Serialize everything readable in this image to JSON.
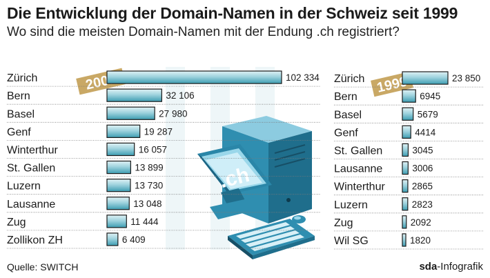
{
  "header": {
    "title": "Die Entwicklung der Domain-Namen in der Schweiz seit 1999",
    "subtitle": "Wo sind die meisten Domain-Namen mit der Endung .ch registriert?"
  },
  "footer": {
    "source": "Quelle: SWITCH",
    "credit_brand": "sda",
    "credit_rest": "-Infografik"
  },
  "illustration": {
    "screen_text": ".ch"
  },
  "colors": {
    "bar_light": "#cde9ee",
    "bar_dark": "#3d9db2",
    "badge": "#c9a865",
    "stripe": "#eef6f8",
    "computer": "#2f8eb0"
  },
  "chart_data": [
    {
      "type": "bar",
      "orientation": "horizontal",
      "badge": "2007",
      "categories": [
        "Zürich",
        "Bern",
        "Basel",
        "Genf",
        "Winterthur",
        "St. Gallen",
        "Luzern",
        "Lausanne",
        "Zug",
        "Zollikon ZH"
      ],
      "values": [
        102334,
        32106,
        27980,
        19287,
        16057,
        13899,
        13730,
        13048,
        11444,
        6409
      ],
      "labels": [
        "102 334",
        "32 106",
        "27 980",
        "19 287",
        "16 057",
        "13 899",
        "13 730",
        "13 048",
        "11 444",
        "6 409"
      ]
    },
    {
      "type": "bar",
      "orientation": "horizontal",
      "badge": "1999",
      "categories": [
        "Zürich",
        "Bern",
        "Basel",
        "Genf",
        "St. Gallen",
        "Lausanne",
        "Winterthur",
        "Luzern",
        "Zug",
        "Wil SG"
      ],
      "values": [
        23850,
        6945,
        5679,
        4414,
        3045,
        3006,
        2865,
        2823,
        2092,
        1820
      ],
      "labels": [
        "23 850",
        "6945",
        "5679",
        "4414",
        "3045",
        "3006",
        "2865",
        "2823",
        "2092",
        "1820"
      ]
    }
  ]
}
